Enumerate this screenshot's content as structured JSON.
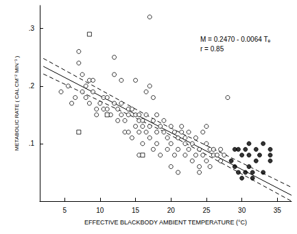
{
  "chart_data": {
    "type": "scatter",
    "x_label": "EFFECTIVE BLACKBODY AMBIENT TEMPERATURE (°C)",
    "y_label": "METABOLIC RATE ( CAL CM⁻² MIN⁻¹ )",
    "annotations": [
      "M = 0.2470 - 0.0064 Tₑ",
      "r = 0.85"
    ],
    "xlim": [
      1.5,
      37
    ],
    "xticks": [
      5,
      10,
      15,
      20,
      25,
      30,
      35
    ],
    "ylim": [
      0,
      0.34
    ],
    "yticks": [
      {
        "value": 0.1,
        "label": ".1"
      },
      {
        "value": 0.2,
        "label": ".2"
      },
      {
        "value": 0.3,
        "label": ".3"
      }
    ],
    "grid": false,
    "series": [
      {
        "type": "scatter",
        "marker": "open_circle",
        "color": "#000000",
        "x": [
          4.5,
          5.5,
          6,
          6.5,
          7,
          7,
          7.5,
          7.5,
          8,
          8,
          8.5,
          8.5,
          9,
          9,
          9.5,
          9.5,
          10,
          10.5,
          10.5,
          11,
          11,
          11.5,
          12,
          12,
          12,
          12.5,
          12.5,
          13,
          13,
          13,
          13.5,
          13.5,
          14,
          14,
          14,
          14.5,
          14.5,
          15,
          15,
          15,
          15.5,
          15.5,
          15.5,
          16,
          16,
          16,
          16.5,
          16.5,
          16.5,
          17,
          17,
          17,
          17,
          17.5,
          17.5,
          17.5,
          18,
          18,
          18,
          18.5,
          18.5,
          19,
          19,
          19.5,
          19.5,
          20,
          20,
          20.5,
          20.5,
          21,
          21,
          21.5,
          21.5,
          22,
          22,
          22,
          22.5,
          22.5,
          23,
          23,
          23.5,
          23.5,
          24,
          24,
          24,
          24.5,
          24.5,
          25,
          25,
          25,
          25.5,
          25.5,
          26,
          26,
          26.5,
          27,
          27,
          27.5,
          28,
          20,
          21,
          15.5
        ],
        "values": [
          0.19,
          0.2,
          0.17,
          0.18,
          0.26,
          0.24,
          0.22,
          0.19,
          0.18,
          0.2,
          0.21,
          0.17,
          0.21,
          0.19,
          0.15,
          0.16,
          0.17,
          0.16,
          0.18,
          0.16,
          0.18,
          0.15,
          0.22,
          0.25,
          0.17,
          0.14,
          0.16,
          0.15,
          0.17,
          0.21,
          0.12,
          0.14,
          0.16,
          0.15,
          0.12,
          0.11,
          0.16,
          0.13,
          0.15,
          0.21,
          0.14,
          0.12,
          0.15,
          0.1,
          0.13,
          0.14,
          0.12,
          0.15,
          0.19,
          0.32,
          0.2,
          0.13,
          0.11,
          0.09,
          0.14,
          0.18,
          0.12,
          0.15,
          0.1,
          0.13,
          0.08,
          0.12,
          0.14,
          0.11,
          0.09,
          0.13,
          0.1,
          0.12,
          0.08,
          0.11,
          0.09,
          0.13,
          0.12,
          0.1,
          0.08,
          0.11,
          0.09,
          0.12,
          0.1,
          0.07,
          0.08,
          0.11,
          0.09,
          0.06,
          0.05,
          0.08,
          0.12,
          0.07,
          0.1,
          0.13,
          0.09,
          0.06,
          0.08,
          0.09,
          0.08,
          0.09,
          0.07,
          0.08,
          0.18,
          0.06,
          0.05,
          0.08
        ]
      },
      {
        "type": "scatter",
        "marker": "open_square",
        "color": "#000000",
        "x": [
          8.5,
          7,
          16,
          11
        ],
        "values": [
          0.29,
          0.12,
          0.08,
          0.15
        ]
      },
      {
        "type": "scatter",
        "marker": "filled_circle",
        "color": "#000000",
        "x": [
          28.5,
          29,
          29,
          29.5,
          29.5,
          30,
          30,
          30.5,
          30.5,
          31,
          31,
          31,
          31.5,
          31.5,
          32,
          32,
          32.5,
          33,
          33,
          34,
          34,
          34
        ],
        "values": [
          0.07,
          0.09,
          0.06,
          0.05,
          0.09,
          0.08,
          0.04,
          0.09,
          0.05,
          0.1,
          0.08,
          0.06,
          0.04,
          0.05,
          0.09,
          0.07,
          0.08,
          0.1,
          0.05,
          0.09,
          0.08,
          0.07
        ]
      },
      {
        "type": "line",
        "line_style": "solid",
        "color": "#000000",
        "x": [
          2,
          37
        ],
        "values": [
          0.2342,
          0.0102
        ]
      },
      {
        "type": "line",
        "line_style": "dashed",
        "color": "#000000",
        "x": [
          2,
          19,
          37
        ],
        "values": [
          0.248,
          0.133,
          0.024
        ]
      },
      {
        "type": "line",
        "line_style": "dashed",
        "color": "#000000",
        "x": [
          2,
          19,
          37
        ],
        "values": [
          0.221,
          0.121,
          0.0
        ]
      }
    ]
  }
}
